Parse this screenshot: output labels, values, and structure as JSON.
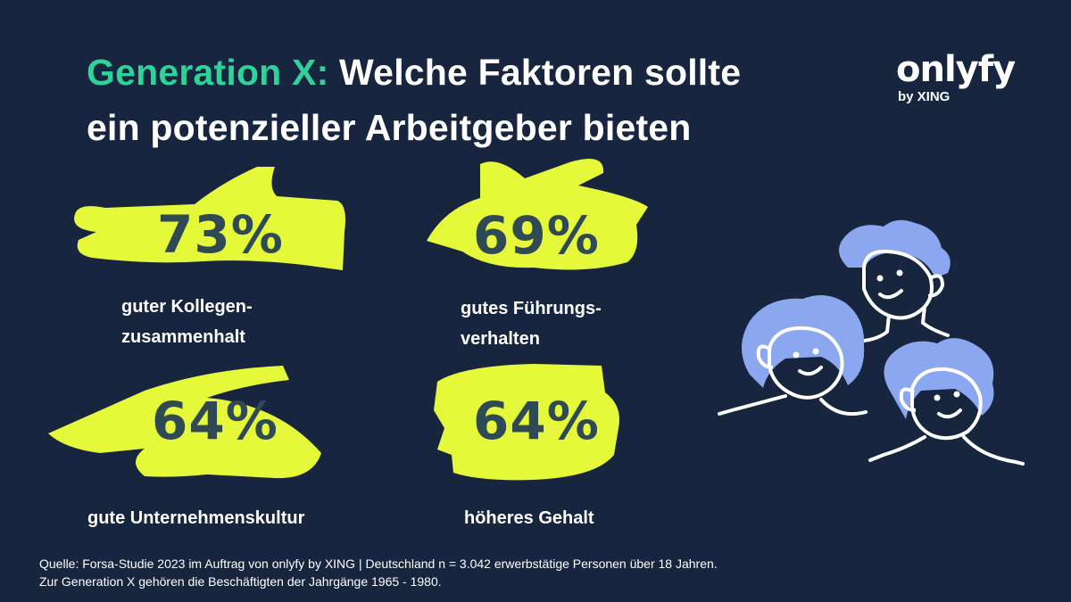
{
  "title": {
    "accent": "Generation X:",
    "line1_rest": " Welche Faktoren sollte",
    "line2": "ein potenzieller Arbeitgeber bieten"
  },
  "logo": {
    "wordmark": "onlyfy",
    "sub": "by XING"
  },
  "stats": [
    {
      "value": "73%",
      "label_line1": "guter Kollegen-",
      "label_line2": "zusammenhalt"
    },
    {
      "value": "69%",
      "label_line1": "gutes Führungs-",
      "label_line2": "verhalten"
    },
    {
      "value": "64%",
      "label_line1": "gute Unternehmenskultur",
      "label_line2": ""
    },
    {
      "value": "64%",
      "label_line1": "höheres Gehalt",
      "label_line2": ""
    }
  ],
  "footnote": {
    "line1": "Quelle: Forsa-Studie 2023 im Auftrag von onlyfy by XING | Deutschland n = 3.042 erwerbstätige Personen über 18 Jahren.",
    "line2": "Zur Generation X gehören die Beschäftigten der Jahrgänge 1965 - 1980."
  },
  "colors": {
    "background": "#17253f",
    "accent_green": "#2fd39a",
    "highlight_yellow": "#e6f83a",
    "number_text": "#2f4a55",
    "illustration_blue": "#8aa7f0"
  }
}
